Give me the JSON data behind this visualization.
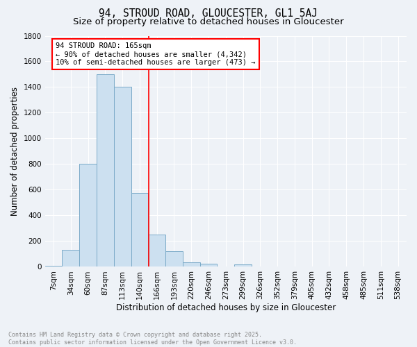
{
  "title": "94, STROUD ROAD, GLOUCESTER, GL1 5AJ",
  "subtitle": "Size of property relative to detached houses in Gloucester",
  "xlabel": "Distribution of detached houses by size in Gloucester",
  "ylabel": "Number of detached properties",
  "bar_color": "#cce0f0",
  "bar_edge_color": "#7aaac8",
  "background_color": "#eef2f7",
  "grid_color": "#ffffff",
  "bin_labels": [
    "7sqm",
    "34sqm",
    "60sqm",
    "87sqm",
    "113sqm",
    "140sqm",
    "166sqm",
    "193sqm",
    "220sqm",
    "246sqm",
    "273sqm",
    "299sqm",
    "326sqm",
    "352sqm",
    "379sqm",
    "405sqm",
    "432sqm",
    "458sqm",
    "485sqm",
    "511sqm",
    "538sqm"
  ],
  "bar_heights": [
    10,
    130,
    800,
    1500,
    1400,
    575,
    250,
    120,
    35,
    25,
    0,
    20,
    0,
    0,
    0,
    0,
    0,
    0,
    0,
    0,
    0
  ],
  "vline_x": 5.52,
  "vline_color": "red",
  "annotation_text": "94 STROUD ROAD: 165sqm\n← 90% of detached houses are smaller (4,342)\n10% of semi-detached houses are larger (473) →",
  "annotation_box_color": "white",
  "annotation_box_edge_color": "red",
  "ylim": [
    0,
    1800
  ],
  "yticks": [
    0,
    200,
    400,
    600,
    800,
    1000,
    1200,
    1400,
    1600,
    1800
  ],
  "footnote": "Contains HM Land Registry data © Crown copyright and database right 2025.\nContains public sector information licensed under the Open Government Licence v3.0.",
  "title_fontsize": 10.5,
  "subtitle_fontsize": 9.5,
  "tick_fontsize": 7.5,
  "label_fontsize": 8.5,
  "annotation_fontsize": 7.5
}
